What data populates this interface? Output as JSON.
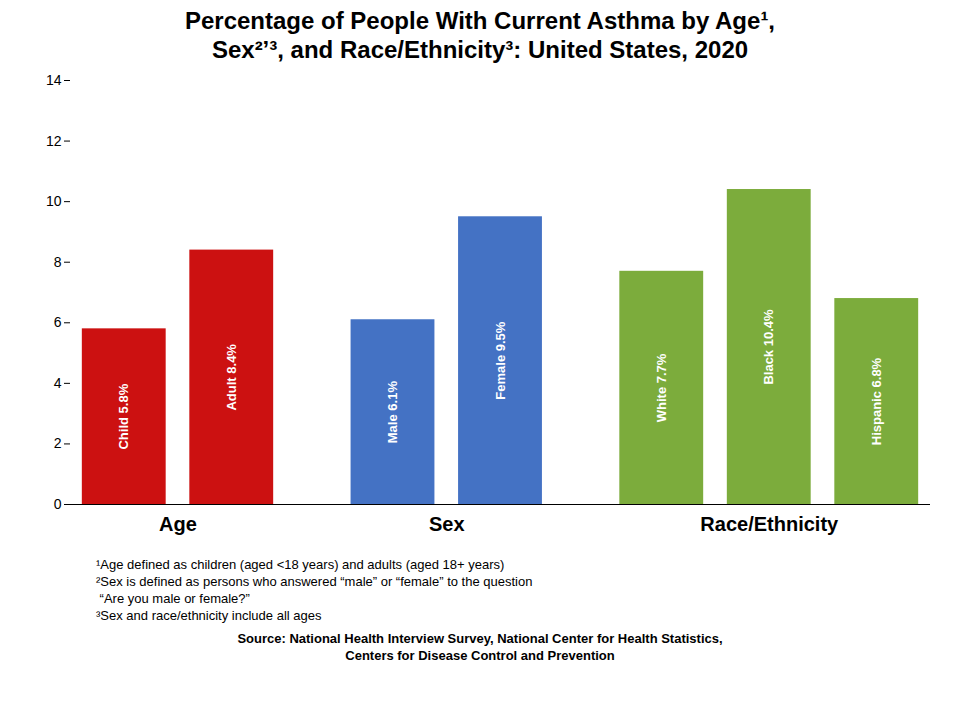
{
  "chart_data": {
    "type": "bar",
    "title": "Percentage of People With Current Asthma by Age¹,",
    "subtitle": "Sex²’³, and Race/Ethnicity³: United States, 2020",
    "categories": [
      "Child",
      "Adult",
      "Male",
      "Female",
      "White",
      "Black",
      "Hispanic"
    ],
    "values": [
      5.8,
      8.4,
      6.1,
      9.5,
      7.7,
      10.4,
      6.8
    ],
    "value_labels": [
      "Child 5.8%",
      "Adult 8.4%",
      "Male 6.1%",
      "Female 9.5%",
      "White 7.7%",
      "Black 10.4%",
      "Hispanic 6.8%"
    ],
    "data_labels": true,
    "colors": [
      "#cc1111",
      "#cc1111",
      "#4472c4",
      "#4472c4",
      "#7cac3c",
      "#7cac3c",
      "#7cac3c"
    ],
    "groups": [
      "Age",
      "Age",
      "Sex",
      "Sex",
      "Race/Ethnicity",
      "Race/Ethnicity",
      "Race/Ethnicity"
    ],
    "ylim": [
      0,
      14
    ],
    "yticks": [
      0,
      2,
      4,
      6,
      8,
      10,
      12,
      14
    ],
    "grid": false,
    "tick_labels": "y",
    "footnotes": [
      "¹Age defined as children (aged <18 years) and adults (aged 18+ years)",
      "²Sex is defined as persons who answered “male” or “female” to the question",
      " “Are you male or female?”",
      "³Sex and race/ethnicity include all ages"
    ],
    "source": [
      "Source: National Health Interview Survey, National Center for Health Statistics,",
      "Centers for Disease Control and Prevention"
    ]
  }
}
